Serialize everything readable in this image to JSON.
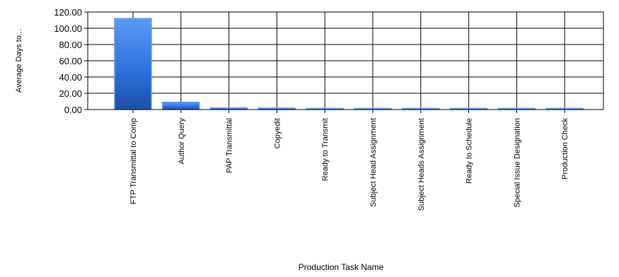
{
  "chart_data": {
    "type": "bar",
    "title": "",
    "xlabel": "Production Task Name",
    "ylabel": "Average Days to...",
    "categories": [
      "FTP Transmittal to Comp",
      "Author Query",
      "PAP Transmittal",
      "Copyedit",
      "Ready to Transmit",
      "Subject Head Assignment",
      "Subject Heads Assignment",
      "Ready to Schedule",
      "Special Issue Designation",
      "Production Check"
    ],
    "values": [
      112,
      9,
      2,
      1.8,
      1.2,
      1.2,
      1.2,
      1.2,
      1.2,
      1.2
    ],
    "ylim": [
      0,
      120
    ],
    "yticks": [
      "0.00",
      "20.00",
      "40.00",
      "60.00",
      "80.00",
      "100.00",
      "120.00"
    ],
    "grid": true,
    "legend": "none",
    "colors": {
      "bar_top": "#5b9af0",
      "bar_mid": "#2f73e0",
      "bar_bottom": "#1d4fa8",
      "grid": "#000000",
      "text": "#000000"
    }
  }
}
